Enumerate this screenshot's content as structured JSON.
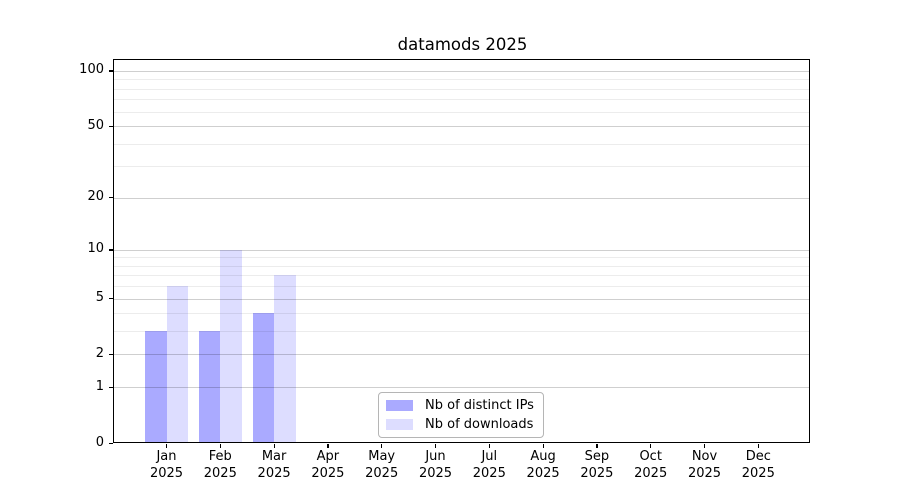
{
  "chart_data": {
    "type": "bar",
    "title": "datamods 2025",
    "categories": [
      "Jan",
      "Feb",
      "Mar",
      "Apr",
      "May",
      "Jun",
      "Jul",
      "Aug",
      "Sep",
      "Oct",
      "Nov",
      "Dec"
    ],
    "year_label": "2025",
    "series": [
      {
        "name": "Nb of distinct IPs",
        "color": "#aaaaff",
        "values": [
          3,
          3,
          4,
          0,
          0,
          0,
          0,
          0,
          0,
          0,
          0,
          0
        ]
      },
      {
        "name": "Nb of downloads",
        "color": "#ddddff",
        "values": [
          6,
          10,
          7,
          0,
          0,
          0,
          0,
          0,
          0,
          0,
          0,
          0
        ]
      }
    ],
    "y_axis": {
      "ticks": [
        0,
        1,
        2,
        5,
        10,
        20,
        50,
        100
      ],
      "minor_gridlines": [
        3,
        4,
        6,
        7,
        8,
        9,
        30,
        40,
        60,
        70,
        80,
        90
      ],
      "scale": "log10(1+x)",
      "min": 0,
      "max": 100
    },
    "x_axis": {
      "label_format": "month-over-year"
    },
    "grid": true,
    "legend_position": "lower center"
  }
}
